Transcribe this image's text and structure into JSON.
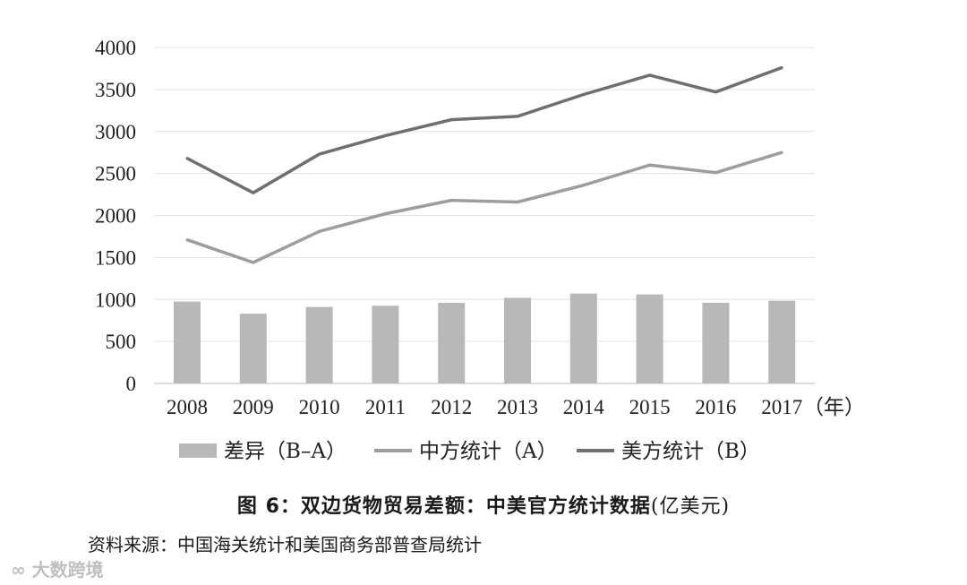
{
  "chart_data": {
    "type": "bar",
    "categories": [
      "2008",
      "2009",
      "2010",
      "2011",
      "2012",
      "2013",
      "2014",
      "2015",
      "2016",
      "2017"
    ],
    "x_unit": "（年）",
    "ylim": [
      0,
      4000
    ],
    "yticks": [
      "0",
      "500",
      "1000",
      "1500",
      "2000",
      "2500",
      "3000",
      "3500",
      "4000"
    ],
    "grid": true,
    "legend_position": "bottom",
    "series": [
      {
        "name": "差异（B–A）",
        "type": "bar",
        "color": "#b8b8b8",
        "values": [
          975,
          830,
          910,
          925,
          960,
          1020,
          1070,
          1060,
          960,
          985
        ]
      },
      {
        "name": "中方统计（A）",
        "type": "line",
        "color": "#9d9d9d",
        "values": [
          1710,
          1440,
          1810,
          2020,
          2180,
          2160,
          2360,
          2600,
          2510,
          2750
        ]
      },
      {
        "name": "美方统计（B）",
        "type": "line",
        "color": "#6f6f6f",
        "values": [
          2680,
          2270,
          2730,
          2950,
          3140,
          3180,
          3440,
          3670,
          3470,
          3760
        ]
      }
    ]
  },
  "caption": {
    "title": "图 6：双边货物贸易差额：中美官方统计数据",
    "unit": "(亿美元)"
  },
  "source": "资料来源：中国海关统计和美国商务部普查局统计",
  "watermark": "大数跨境"
}
